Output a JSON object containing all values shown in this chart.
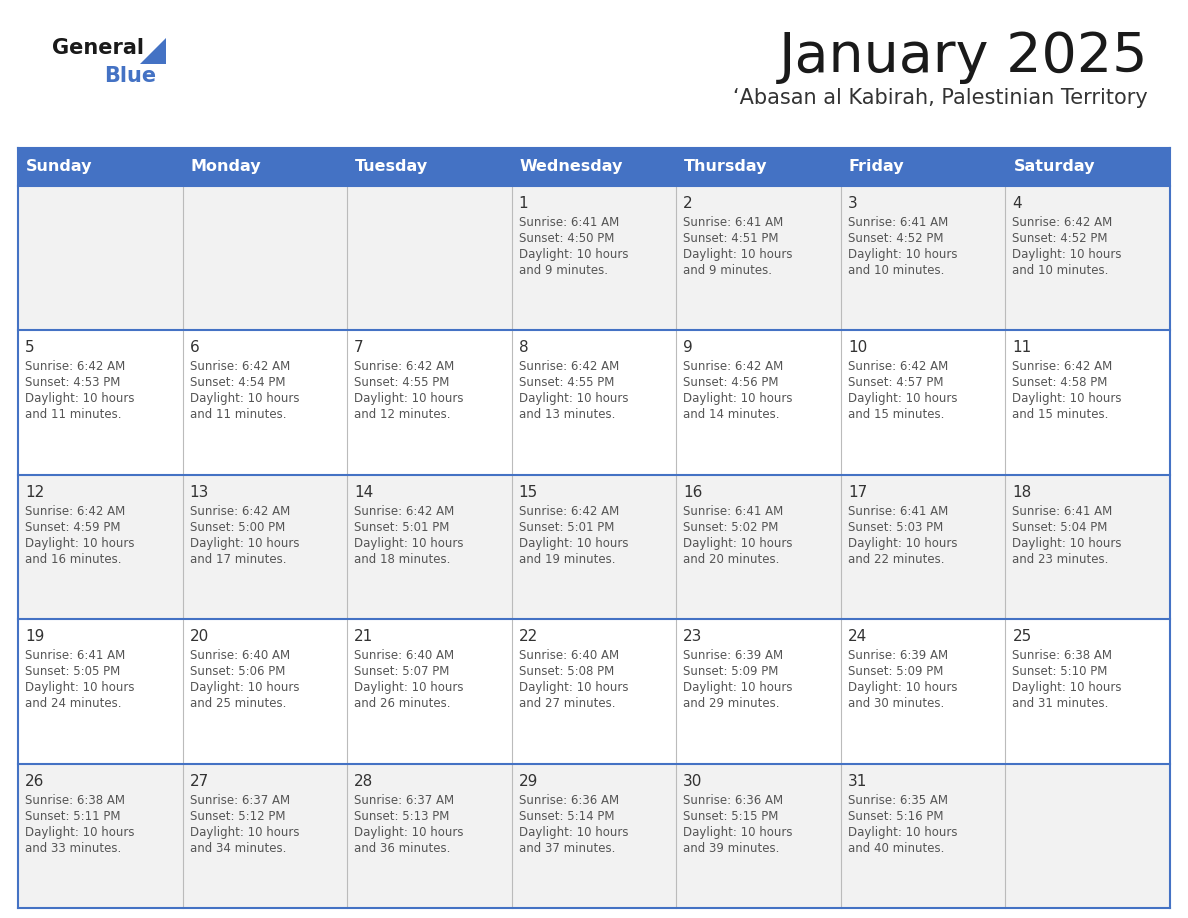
{
  "title": "January 2025",
  "subtitle": "‘Abasan al Kabirah, Palestinian Territory",
  "days_of_week": [
    "Sunday",
    "Monday",
    "Tuesday",
    "Wednesday",
    "Thursday",
    "Friday",
    "Saturday"
  ],
  "header_bg": "#4472C4",
  "header_text_color": "#FFFFFF",
  "row_bg": [
    "#F2F2F2",
    "#FFFFFF",
    "#F2F2F2",
    "#FFFFFF",
    "#F2F2F2"
  ],
  "line_color": "#4472C4",
  "day_number_color": "#333333",
  "cell_text_color": "#555555",
  "title_color": "#1a1a1a",
  "subtitle_color": "#333333",
  "logo_general_color": "#1a1a1a",
  "logo_blue_color": "#4472C4",
  "logo_triangle_color": "#4472C4",
  "weeks": [
    [
      {
        "day": null,
        "sunrise": null,
        "sunset": null,
        "daylight": null
      },
      {
        "day": null,
        "sunrise": null,
        "sunset": null,
        "daylight": null
      },
      {
        "day": null,
        "sunrise": null,
        "sunset": null,
        "daylight": null
      },
      {
        "day": 1,
        "sunrise": "6:41 AM",
        "sunset": "4:50 PM",
        "daylight": "10 hours and 9 minutes."
      },
      {
        "day": 2,
        "sunrise": "6:41 AM",
        "sunset": "4:51 PM",
        "daylight": "10 hours and 9 minutes."
      },
      {
        "day": 3,
        "sunrise": "6:41 AM",
        "sunset": "4:52 PM",
        "daylight": "10 hours and 10 minutes."
      },
      {
        "day": 4,
        "sunrise": "6:42 AM",
        "sunset": "4:52 PM",
        "daylight": "10 hours and 10 minutes."
      }
    ],
    [
      {
        "day": 5,
        "sunrise": "6:42 AM",
        "sunset": "4:53 PM",
        "daylight": "10 hours and 11 minutes."
      },
      {
        "day": 6,
        "sunrise": "6:42 AM",
        "sunset": "4:54 PM",
        "daylight": "10 hours and 11 minutes."
      },
      {
        "day": 7,
        "sunrise": "6:42 AM",
        "sunset": "4:55 PM",
        "daylight": "10 hours and 12 minutes."
      },
      {
        "day": 8,
        "sunrise": "6:42 AM",
        "sunset": "4:55 PM",
        "daylight": "10 hours and 13 minutes."
      },
      {
        "day": 9,
        "sunrise": "6:42 AM",
        "sunset": "4:56 PM",
        "daylight": "10 hours and 14 minutes."
      },
      {
        "day": 10,
        "sunrise": "6:42 AM",
        "sunset": "4:57 PM",
        "daylight": "10 hours and 15 minutes."
      },
      {
        "day": 11,
        "sunrise": "6:42 AM",
        "sunset": "4:58 PM",
        "daylight": "10 hours and 15 minutes."
      }
    ],
    [
      {
        "day": 12,
        "sunrise": "6:42 AM",
        "sunset": "4:59 PM",
        "daylight": "10 hours and 16 minutes."
      },
      {
        "day": 13,
        "sunrise": "6:42 AM",
        "sunset": "5:00 PM",
        "daylight": "10 hours and 17 minutes."
      },
      {
        "day": 14,
        "sunrise": "6:42 AM",
        "sunset": "5:01 PM",
        "daylight": "10 hours and 18 minutes."
      },
      {
        "day": 15,
        "sunrise": "6:42 AM",
        "sunset": "5:01 PM",
        "daylight": "10 hours and 19 minutes."
      },
      {
        "day": 16,
        "sunrise": "6:41 AM",
        "sunset": "5:02 PM",
        "daylight": "10 hours and 20 minutes."
      },
      {
        "day": 17,
        "sunrise": "6:41 AM",
        "sunset": "5:03 PM",
        "daylight": "10 hours and 22 minutes."
      },
      {
        "day": 18,
        "sunrise": "6:41 AM",
        "sunset": "5:04 PM",
        "daylight": "10 hours and 23 minutes."
      }
    ],
    [
      {
        "day": 19,
        "sunrise": "6:41 AM",
        "sunset": "5:05 PM",
        "daylight": "10 hours and 24 minutes."
      },
      {
        "day": 20,
        "sunrise": "6:40 AM",
        "sunset": "5:06 PM",
        "daylight": "10 hours and 25 minutes."
      },
      {
        "day": 21,
        "sunrise": "6:40 AM",
        "sunset": "5:07 PM",
        "daylight": "10 hours and 26 minutes."
      },
      {
        "day": 22,
        "sunrise": "6:40 AM",
        "sunset": "5:08 PM",
        "daylight": "10 hours and 27 minutes."
      },
      {
        "day": 23,
        "sunrise": "6:39 AM",
        "sunset": "5:09 PM",
        "daylight": "10 hours and 29 minutes."
      },
      {
        "day": 24,
        "sunrise": "6:39 AM",
        "sunset": "5:09 PM",
        "daylight": "10 hours and 30 minutes."
      },
      {
        "day": 25,
        "sunrise": "6:38 AM",
        "sunset": "5:10 PM",
        "daylight": "10 hours and 31 minutes."
      }
    ],
    [
      {
        "day": 26,
        "sunrise": "6:38 AM",
        "sunset": "5:11 PM",
        "daylight": "10 hours and 33 minutes."
      },
      {
        "day": 27,
        "sunrise": "6:37 AM",
        "sunset": "5:12 PM",
        "daylight": "10 hours and 34 minutes."
      },
      {
        "day": 28,
        "sunrise": "6:37 AM",
        "sunset": "5:13 PM",
        "daylight": "10 hours and 36 minutes."
      },
      {
        "day": 29,
        "sunrise": "6:36 AM",
        "sunset": "5:14 PM",
        "daylight": "10 hours and 37 minutes."
      },
      {
        "day": 30,
        "sunrise": "6:36 AM",
        "sunset": "5:15 PM",
        "daylight": "10 hours and 39 minutes."
      },
      {
        "day": 31,
        "sunrise": "6:35 AM",
        "sunset": "5:16 PM",
        "daylight": "10 hours and 40 minutes."
      },
      {
        "day": null,
        "sunrise": null,
        "sunset": null,
        "daylight": null
      }
    ]
  ]
}
